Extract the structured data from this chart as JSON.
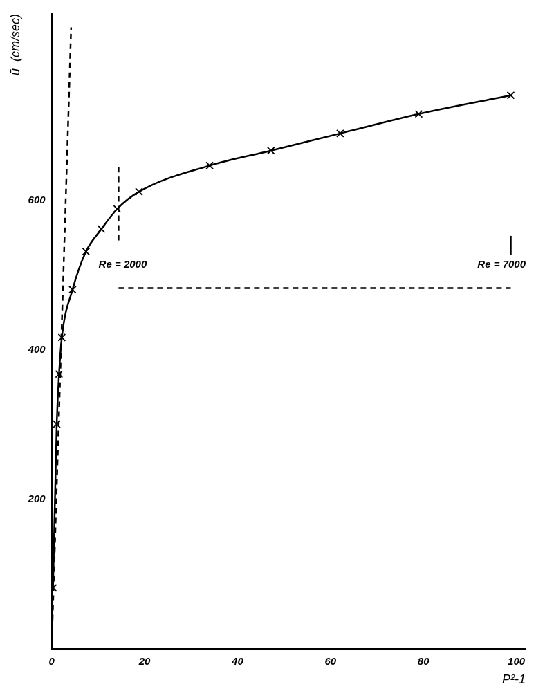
{
  "chart_data": {
    "type": "line",
    "xlabel": "P²-1",
    "ylabel": "ū  (cm/sec)",
    "xlim": [
      0,
      102
    ],
    "ylim": [
      0,
      850
    ],
    "xticks": [
      0,
      20,
      40,
      60,
      80,
      100
    ],
    "yticks": [
      200,
      400,
      600
    ],
    "grid": false,
    "legend": false,
    "series": [
      {
        "type": "line",
        "x": [
          0.3,
          1.1,
          1.6,
          2.2,
          4.5,
          7.4,
          10.7,
          14.1,
          18.8,
          34.0,
          47.2,
          62.1,
          79.0,
          98.8
        ],
        "values": [
          82,
          301,
          368,
          417,
          481,
          532,
          562,
          589,
          612,
          647,
          667,
          690,
          716,
          741
        ],
        "color": "#000000",
        "marker": "cross",
        "line_style": "solid"
      },
      {
        "type": "line",
        "x": [
          0,
          4.2
        ],
        "values": [
          0,
          832
        ],
        "color": "#000000",
        "marker": "none",
        "line_style": "dashed"
      },
      {
        "type": "line",
        "x": [
          14.4,
          14.4
        ],
        "values": [
          645,
          547
        ],
        "color": "#000000",
        "marker": "none",
        "line_style": "dashed"
      },
      {
        "type": "line",
        "x": [
          98.8,
          98.8
        ],
        "values": [
          553,
          527
        ],
        "color": "#000000",
        "marker": "none",
        "line_style": "solid"
      },
      {
        "type": "line",
        "x": [
          14.4,
          98.8
        ],
        "values": [
          483,
          483
        ],
        "color": "#000000",
        "marker": "none",
        "line_style": "dashed"
      }
    ],
    "annotations": [
      "Re = 2000",
      "Re = 7000"
    ]
  }
}
